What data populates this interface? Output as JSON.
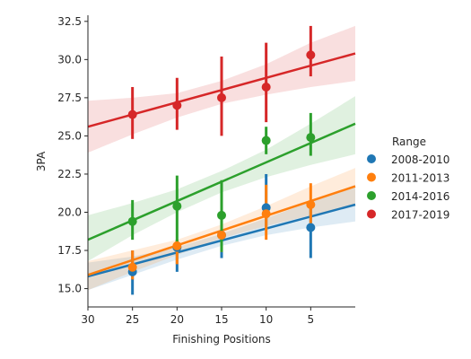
{
  "chart_data": {
    "type": "scatter",
    "title": "",
    "xlabel": "Finishing Positions",
    "ylabel": "3PA",
    "xlim": [
      30,
      0
    ],
    "ylim": [
      13.8,
      32.9
    ],
    "x_ticks": [
      30,
      25,
      20,
      15,
      10,
      5
    ],
    "y_ticks": [
      15.0,
      17.5,
      20.0,
      22.5,
      25.0,
      27.5,
      30.0,
      32.5
    ],
    "grid": false,
    "legend": {
      "title": "Range",
      "placement": "right"
    },
    "regression_fit_lines": true,
    "confidence_bands": true,
    "series": [
      {
        "name": "2008-2010",
        "color": "#1f77b4",
        "points": [
          {
            "x": 25,
            "y": 16.1,
            "lo": 14.6,
            "hi": 17.5
          },
          {
            "x": 20,
            "y": 17.7,
            "lo": 16.1,
            "hi": 18.2
          },
          {
            "x": 15,
            "y": 18.5,
            "lo": 17.0,
            "hi": 19.8
          },
          {
            "x": 10,
            "y": 20.3,
            "lo": 18.9,
            "hi": 22.5
          },
          {
            "x": 5,
            "y": 19.0,
            "lo": 17.0,
            "hi": 20.8
          }
        ],
        "fit": {
          "x0": 30,
          "y0": 15.8,
          "x1": 0,
          "y1": 20.5
        },
        "band": [
          {
            "x": 30,
            "lo": 14.9,
            "hi": 16.7
          },
          {
            "x": 25,
            "lo": 15.9,
            "hi": 17.1
          },
          {
            "x": 20,
            "lo": 16.9,
            "hi": 17.7
          },
          {
            "x": 15,
            "lo": 17.8,
            "hi": 18.6
          },
          {
            "x": 10,
            "lo": 18.5,
            "hi": 19.6
          },
          {
            "x": 5,
            "lo": 19.0,
            "hi": 20.7
          },
          {
            "x": 0,
            "lo": 19.4,
            "hi": 21.8
          }
        ]
      },
      {
        "name": "2011-2013",
        "color": "#ff7f0e",
        "points": [
          {
            "x": 25,
            "y": 16.4,
            "lo": 15.6,
            "hi": 17.5
          },
          {
            "x": 20,
            "y": 17.8,
            "lo": 16.6,
            "hi": 18.2
          },
          {
            "x": 15,
            "y": 18.5,
            "lo": 17.4,
            "hi": 19.8
          },
          {
            "x": 10,
            "y": 19.9,
            "lo": 18.2,
            "hi": 21.8
          },
          {
            "x": 5,
            "y": 20.5,
            "lo": 19.2,
            "hi": 21.9
          }
        ],
        "fit": {
          "x0": 30,
          "y0": 15.9,
          "x1": 0,
          "y1": 21.7
        },
        "band": [
          {
            "x": 30,
            "lo": 14.9,
            "hi": 16.8
          },
          {
            "x": 25,
            "lo": 16.1,
            "hi": 17.5
          },
          {
            "x": 20,
            "lo": 17.2,
            "hi": 18.2
          },
          {
            "x": 15,
            "lo": 18.3,
            "hi": 19.2
          },
          {
            "x": 10,
            "lo": 19.1,
            "hi": 20.4
          },
          {
            "x": 5,
            "lo": 19.8,
            "hi": 21.7
          },
          {
            "x": 0,
            "lo": 20.4,
            "hi": 22.9
          }
        ]
      },
      {
        "name": "2014-2016",
        "color": "#2ca02c",
        "points": [
          {
            "x": 25,
            "y": 19.4,
            "lo": 18.2,
            "hi": 20.8
          },
          {
            "x": 20,
            "y": 20.4,
            "lo": 17.8,
            "hi": 22.4
          },
          {
            "x": 15,
            "y": 19.8,
            "lo": 17.4,
            "hi": 22.1
          },
          {
            "x": 10,
            "y": 24.7,
            "lo": 23.8,
            "hi": 25.6
          },
          {
            "x": 5,
            "y": 24.9,
            "lo": 23.7,
            "hi": 26.5
          }
        ],
        "fit": {
          "x0": 30,
          "y0": 18.2,
          "x1": 0,
          "y1": 25.8
        },
        "band": [
          {
            "x": 30,
            "lo": 16.8,
            "hi": 19.8
          },
          {
            "x": 25,
            "lo": 18.5,
            "hi": 20.6
          },
          {
            "x": 20,
            "lo": 20.0,
            "hi": 21.5
          },
          {
            "x": 15,
            "lo": 21.3,
            "hi": 22.7
          },
          {
            "x": 10,
            "lo": 22.3,
            "hi": 24.1
          },
          {
            "x": 5,
            "lo": 23.1,
            "hi": 25.8
          },
          {
            "x": 0,
            "lo": 23.8,
            "hi": 27.6
          }
        ]
      },
      {
        "name": "2017-2019",
        "color": "#d62728",
        "points": [
          {
            "x": 25,
            "y": 26.4,
            "lo": 24.8,
            "hi": 28.2
          },
          {
            "x": 20,
            "y": 27.0,
            "lo": 25.4,
            "hi": 28.8
          },
          {
            "x": 15,
            "y": 27.5,
            "lo": 25.0,
            "hi": 30.2
          },
          {
            "x": 10,
            "y": 28.2,
            "lo": 25.9,
            "hi": 31.1
          },
          {
            "x": 5,
            "y": 30.3,
            "lo": 28.9,
            "hi": 32.2
          }
        ],
        "fit": {
          "x0": 30,
          "y0": 25.6,
          "x1": 0,
          "y1": 30.4
        },
        "band": [
          {
            "x": 30,
            "lo": 23.9,
            "hi": 27.3
          },
          {
            "x": 25,
            "lo": 25.1,
            "hi": 27.5
          },
          {
            "x": 20,
            "lo": 26.2,
            "hi": 27.8
          },
          {
            "x": 15,
            "lo": 27.1,
            "hi": 28.6
          },
          {
            "x": 10,
            "lo": 27.7,
            "hi": 29.7
          },
          {
            "x": 5,
            "lo": 28.2,
            "hi": 31.1
          },
          {
            "x": 0,
            "lo": 28.6,
            "hi": 32.2
          }
        ]
      }
    ]
  }
}
